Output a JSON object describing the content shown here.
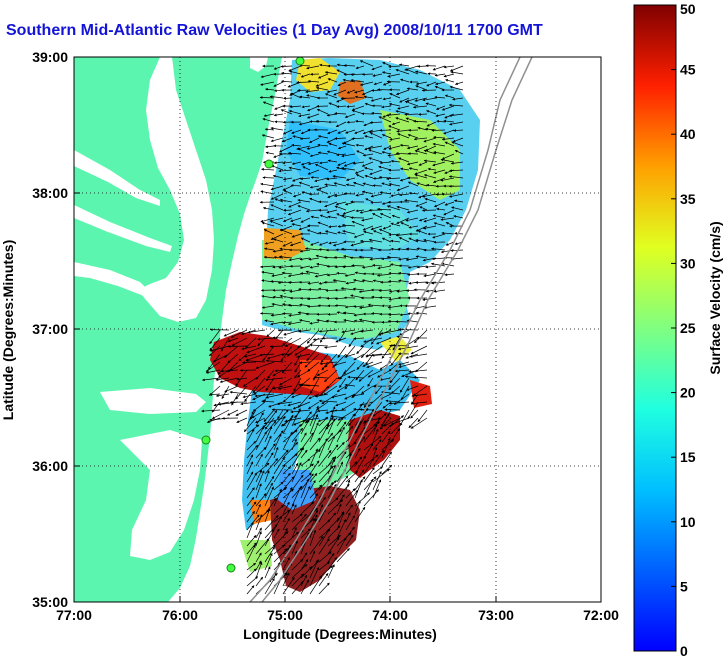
{
  "title": "Southern Mid-Atlantic Raw Velocities (1 Day Avg) 2008/10/11 1700 GMT",
  "map": {
    "x_axis": {
      "label": "Longitude (Degrees:Minutes)",
      "ticks": [
        "77:00",
        "76:00",
        "75:00",
        "74:00",
        "73:00",
        "72:00"
      ]
    },
    "y_axis": {
      "label": "Latitude (Degrees:Minutes)",
      "ticks": [
        "39:00",
        "38:00",
        "37:00",
        "36:00",
        "35:00"
      ]
    },
    "land_color": "#5cf5b0",
    "grid": "dotted"
  },
  "colorbar": {
    "label": "Surface Velocity (cm/s)",
    "ticks": [
      "50",
      "45",
      "40",
      "35",
      "30",
      "25",
      "20",
      "15",
      "10",
      "5",
      "0"
    ],
    "min": 0,
    "max": 50,
    "colormap": "jet"
  }
}
